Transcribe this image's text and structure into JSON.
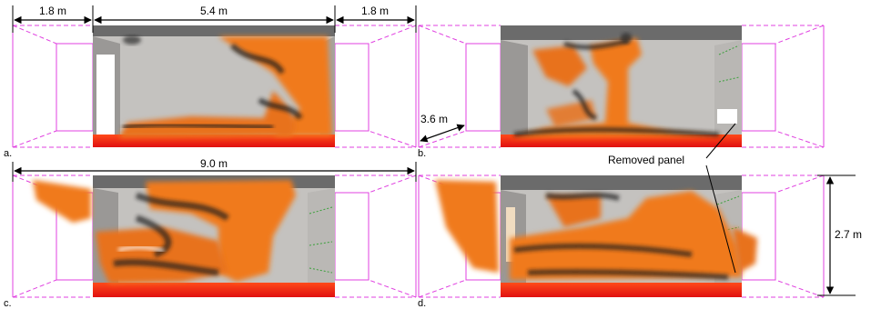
{
  "dimensions": {
    "left_annex": "1.8 m",
    "room_length": "5.4 m",
    "right_annex": "1.8 m",
    "depth": "3.6 m",
    "total_length": "9.0 m",
    "height": "2.7 m"
  },
  "annotations": {
    "removed_panel": "Removed panel"
  },
  "panels": [
    {
      "label": "a."
    },
    {
      "label": "b."
    },
    {
      "label": "c."
    },
    {
      "label": "d."
    }
  ],
  "colors": {
    "wireframe": "#e040e0",
    "fire_orange": "#f07a1a",
    "smoke_dark": "#1c1c1c",
    "floor_red": "#e81b10",
    "wall_grey": "#c4c2bf",
    "ceiling_grey": "#6b6b6b"
  }
}
